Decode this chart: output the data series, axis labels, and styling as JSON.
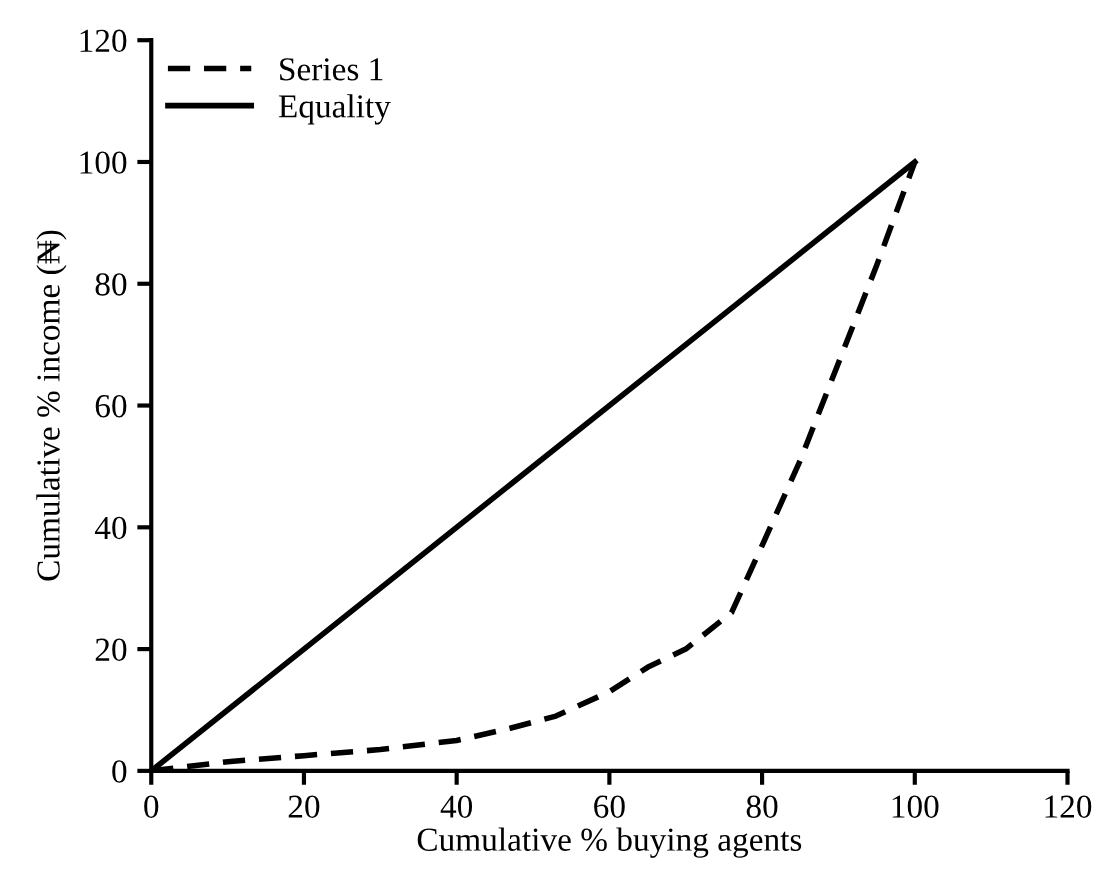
{
  "chart_data": {
    "type": "line",
    "xlabel": "Cumulative % buying agents",
    "ylabel": "Cumulative % income (₦)",
    "xlim": [
      0,
      120
    ],
    "ylim": [
      0,
      120
    ],
    "xticks": [
      0,
      20,
      40,
      60,
      80,
      100,
      120
    ],
    "yticks": [
      0,
      20,
      40,
      60,
      80,
      100,
      120
    ],
    "grid": false,
    "legend": "top left",
    "marker": "none",
    "series": [
      {
        "name": "Series 1",
        "color": "#000000",
        "line_style": "dashed",
        "x": [
          0,
          10,
          20,
          30,
          40,
          47,
          53,
          60,
          65,
          70,
          76,
          80,
          85,
          90,
          95,
          100
        ],
        "values": [
          0,
          1.5,
          2.5,
          3.5,
          5,
          7,
          9,
          13,
          17,
          20,
          26,
          37,
          51,
          67,
          83,
          100
        ]
      },
      {
        "name": "Equality",
        "color": "#000000",
        "line_style": "solid",
        "x": [
          0,
          100
        ],
        "values": [
          0,
          100
        ]
      }
    ]
  }
}
